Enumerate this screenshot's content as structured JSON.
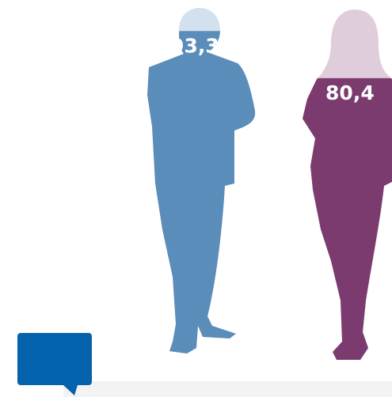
{
  "chart_data": {
    "type": "pictogram",
    "values": [
      93.3,
      80.4
    ],
    "value_labels": [
      "93,3",
      "80,4"
    ],
    "colors": [
      "#5b8dba",
      "#7b3b6f"
    ],
    "track_colors": [
      "#d3e1ee",
      "#e0cddc"
    ],
    "ylim": [
      0,
      100
    ]
  }
}
